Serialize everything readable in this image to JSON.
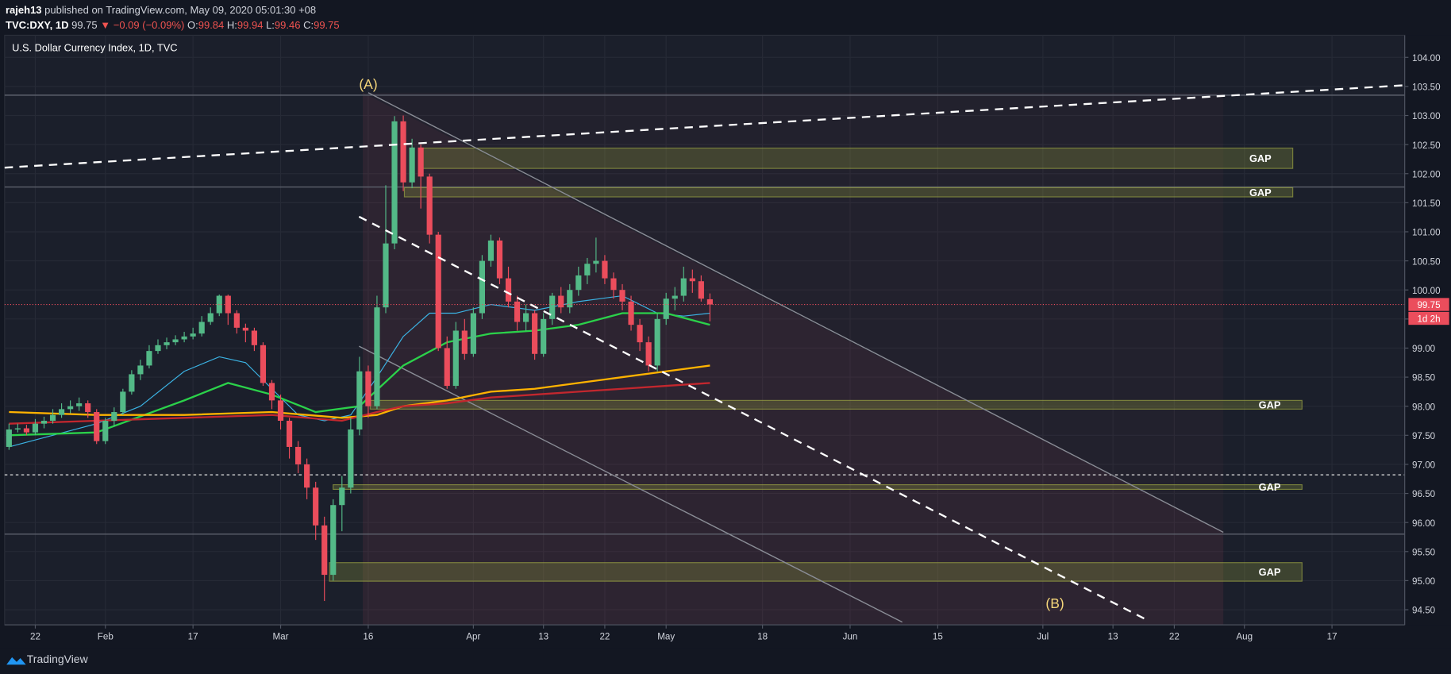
{
  "header": {
    "author": "rajeh13",
    "published": "published on TradingView.com, May 09, 2020 05:01:30 +08",
    "symbol": "TVC:DXY, 1D",
    "last": "99.75",
    "change": "▼ −0.09 (−0.09%)",
    "ohlc": [
      {
        "label": "O:",
        "value": "99.84"
      },
      {
        "label": "H:",
        "value": "99.94"
      },
      {
        "label": "L:",
        "value": "99.46"
      },
      {
        "label": "C:",
        "value": "99.75"
      }
    ]
  },
  "footer": {
    "brand": "TradingView"
  },
  "chart_data": {
    "type": "candlestick",
    "title": "U.S. Dollar Currency Index, 1D, TVC",
    "up_color": "#53b987",
    "down_color": "#eb4d5c",
    "grid": true,
    "x": [
      0,
      1,
      2,
      3,
      4,
      5,
      6,
      7,
      8,
      9,
      10,
      11,
      12,
      13,
      14,
      15,
      16,
      17,
      18,
      19,
      20,
      21,
      22,
      23,
      24,
      25,
      26,
      27,
      28,
      29,
      30,
      31,
      32,
      33,
      34,
      35,
      36,
      37,
      38,
      39,
      40,
      41,
      42,
      43,
      44,
      45,
      46,
      47,
      48,
      49,
      50,
      51,
      52,
      53,
      54,
      55,
      56,
      57,
      58,
      59,
      60,
      61,
      62,
      63,
      64,
      65,
      66,
      67,
      68,
      69,
      70,
      71,
      72,
      73,
      74,
      75,
      76,
      77,
      78,
      79,
      80
    ],
    "open": [
      97.3,
      97.6,
      97.62,
      97.55,
      97.7,
      97.75,
      97.85,
      97.95,
      98.0,
      98.05,
      97.9,
      97.4,
      97.75,
      97.9,
      98.25,
      98.55,
      98.7,
      98.95,
      99.05,
      99.1,
      99.15,
      99.2,
      99.25,
      99.45,
      99.6,
      99.9,
      99.6,
      99.35,
      99.3,
      99.05,
      98.4,
      98.1,
      97.75,
      97.3,
      97.0,
      96.6,
      95.95,
      95.1,
      96.3,
      96.6,
      97.6,
      98.6,
      98.0,
      99.7,
      100.8,
      102.9,
      101.85,
      102.45,
      101.95,
      100.95,
      99.0,
      98.35,
      99.3,
      98.9,
      99.6,
      100.5,
      100.85,
      100.2,
      99.8,
      99.45,
      99.6,
      98.9,
      99.5,
      99.9,
      99.7,
      100.0,
      100.25,
      100.45,
      100.5,
      100.2,
      100.0,
      99.8,
      99.4,
      99.1,
      98.7,
      99.5,
      99.85,
      99.9,
      100.2,
      100.15,
      99.84
    ],
    "high": [
      97.7,
      97.7,
      97.68,
      97.78,
      97.82,
      97.95,
      98.05,
      98.1,
      98.15,
      98.1,
      97.95,
      97.8,
      97.98,
      98.3,
      98.62,
      98.8,
      99.05,
      99.15,
      99.18,
      99.22,
      99.28,
      99.35,
      99.55,
      99.7,
      99.92,
      99.92,
      99.65,
      99.42,
      99.35,
      99.1,
      98.45,
      98.2,
      97.8,
      97.4,
      97.1,
      96.7,
      96.1,
      96.4,
      96.8,
      97.8,
      98.85,
      98.7,
      99.9,
      101.8,
      102.99,
      103.0,
      102.6,
      102.5,
      102.0,
      101.0,
      99.2,
      99.45,
      99.5,
      99.7,
      100.6,
      100.95,
      100.9,
      100.4,
      99.9,
      99.75,
      99.65,
      99.6,
      99.95,
      100.05,
      100.1,
      100.4,
      100.55,
      100.9,
      100.6,
      100.3,
      100.1,
      99.9,
      99.5,
      99.2,
      99.6,
      99.95,
      100.05,
      100.4,
      100.35,
      100.25,
      99.94
    ],
    "low": [
      97.25,
      97.55,
      97.5,
      97.5,
      97.62,
      97.7,
      97.8,
      97.88,
      97.92,
      97.8,
      97.35,
      97.35,
      97.65,
      97.85,
      98.2,
      98.45,
      98.65,
      98.9,
      98.98,
      99.05,
      99.1,
      99.15,
      99.2,
      99.4,
      99.55,
      99.4,
      99.25,
      99.1,
      98.95,
      98.35,
      97.95,
      97.6,
      97.1,
      96.85,
      96.4,
      95.7,
      94.65,
      95.0,
      95.85,
      96.5,
      97.5,
      97.8,
      97.95,
      99.6,
      100.7,
      101.7,
      101.75,
      101.4,
      100.8,
      98.95,
      98.3,
      98.3,
      98.8,
      98.85,
      99.5,
      100.4,
      100.1,
      99.7,
      99.3,
      99.3,
      98.8,
      98.85,
      99.4,
      99.6,
      99.6,
      99.9,
      100.1,
      100.3,
      100.1,
      99.85,
      99.65,
      99.3,
      98.95,
      98.6,
      98.6,
      99.4,
      99.65,
      99.8,
      99.95,
      99.8,
      99.46
    ],
    "close": [
      97.6,
      97.62,
      97.55,
      97.7,
      97.75,
      97.85,
      97.95,
      98.0,
      98.05,
      97.9,
      97.4,
      97.75,
      97.9,
      98.25,
      98.55,
      98.7,
      98.95,
      99.05,
      99.1,
      99.15,
      99.2,
      99.25,
      99.45,
      99.6,
      99.9,
      99.6,
      99.35,
      99.3,
      99.05,
      98.4,
      98.1,
      97.75,
      97.3,
      97.0,
      96.6,
      95.95,
      95.1,
      96.3,
      96.6,
      97.6,
      98.6,
      98.0,
      99.7,
      100.8,
      102.9,
      101.85,
      102.45,
      101.95,
      100.95,
      99.0,
      98.35,
      99.3,
      98.9,
      99.6,
      100.5,
      100.85,
      100.2,
      99.8,
      99.45,
      99.6,
      98.9,
      99.5,
      99.9,
      99.7,
      100.0,
      100.25,
      100.45,
      100.5,
      100.2,
      100.0,
      99.8,
      99.4,
      99.1,
      98.7,
      99.5,
      99.85,
      99.9,
      100.2,
      100.15,
      99.85,
      99.75
    ],
    "moving_averages": [
      {
        "color": "#3bb3e4",
        "x": [
          0,
          5,
          10,
          15,
          20,
          24,
          27,
          30,
          33,
          36,
          39,
          42,
          45,
          48,
          51,
          55,
          60,
          65,
          70,
          74,
          77,
          80
        ],
        "values": [
          97.3,
          97.5,
          97.7,
          98.0,
          98.6,
          98.85,
          98.75,
          98.3,
          97.85,
          97.75,
          97.85,
          98.5,
          99.2,
          99.6,
          99.6,
          99.75,
          99.65,
          99.8,
          99.9,
          99.6,
          99.55,
          99.6
        ]
      },
      {
        "color": "#2bd14a",
        "x": [
          0,
          10,
          20,
          25,
          30,
          35,
          40,
          45,
          50,
          55,
          60,
          65,
          70,
          75,
          80
        ],
        "values": [
          97.5,
          97.55,
          98.1,
          98.4,
          98.2,
          97.9,
          98.0,
          98.7,
          99.1,
          99.25,
          99.3,
          99.4,
          99.6,
          99.6,
          99.4
        ]
      },
      {
        "color": "#ffb300",
        "x": [
          0,
          10,
          20,
          30,
          38,
          42,
          45,
          50,
          55,
          60,
          65,
          70,
          75,
          80
        ],
        "values": [
          97.9,
          97.85,
          97.85,
          97.9,
          97.8,
          97.85,
          98.0,
          98.1,
          98.25,
          98.3,
          98.4,
          98.5,
          98.6,
          98.7
        ]
      },
      {
        "color": "#c3272e",
        "x": [
          0,
          10,
          20,
          30,
          38,
          42,
          45,
          50,
          55,
          60,
          65,
          70,
          75,
          80
        ],
        "values": [
          97.7,
          97.75,
          97.8,
          97.85,
          97.75,
          97.9,
          98.0,
          98.05,
          98.15,
          98.2,
          98.25,
          98.3,
          98.35,
          98.4
        ]
      }
    ],
    "zones": [
      {
        "label": "GAP",
        "low": 102.09,
        "high": 102.44
      },
      {
        "label": "GAP",
        "low": 101.6,
        "high": 101.76
      },
      {
        "label": "GAP",
        "low": 97.95,
        "high": 98.1
      },
      {
        "label": "GAP",
        "low": 96.57,
        "high": 96.65
      },
      {
        "label": "GAP",
        "low": 94.99,
        "high": 95.31
      }
    ],
    "levels": [
      103.35,
      101.77,
      95.8
    ],
    "dotted_level": 96.82,
    "annotations": [
      "(A)",
      "(B)"
    ],
    "countdown": "1d 2h",
    "xlim": [
      -0.5,
      159.3
    ],
    "ylim": [
      94.24,
      104.38
    ],
    "xticks": [
      {
        "value": 3,
        "label": "22"
      },
      {
        "value": 11,
        "label": "Feb"
      },
      {
        "value": 21,
        "label": "17"
      },
      {
        "value": 31,
        "label": "Mar"
      },
      {
        "value": 41,
        "label": "16"
      },
      {
        "value": 53,
        "label": "Apr"
      },
      {
        "value": 61,
        "label": "13"
      },
      {
        "value": 68,
        "label": "22"
      },
      {
        "value": 75,
        "label": "May"
      },
      {
        "value": 86,
        "label": "18"
      },
      {
        "value": 96,
        "label": "Jun"
      },
      {
        "value": 106,
        "label": "15"
      },
      {
        "value": 118,
        "label": "Jul"
      },
      {
        "value": 126,
        "label": "13"
      },
      {
        "value": 133,
        "label": "22"
      },
      {
        "value": 141,
        "label": "Aug"
      },
      {
        "value": 151,
        "label": "17"
      }
    ],
    "yticks": [
      {
        "value": 94.5,
        "label": "94.50"
      },
      {
        "value": 95,
        "label": "95.00"
      },
      {
        "value": 95.5,
        "label": "95.50"
      },
      {
        "value": 96,
        "label": "96.00"
      },
      {
        "value": 96.5,
        "label": "96.50"
      },
      {
        "value": 97,
        "label": "97.00"
      },
      {
        "value": 97.5,
        "label": "97.50"
      },
      {
        "value": 98,
        "label": "98.00"
      },
      {
        "value": 98.5,
        "label": "98.50"
      },
      {
        "value": 99,
        "label": "99.00"
      },
      {
        "value": 99.5,
        "label": "99.50"
      },
      {
        "value": 100,
        "label": "100.00"
      },
      {
        "value": 100.5,
        "label": "100.50"
      },
      {
        "value": 101,
        "label": "101.00"
      },
      {
        "value": 101.5,
        "label": "101.50"
      },
      {
        "value": 102,
        "label": "102.00"
      },
      {
        "value": 102.5,
        "label": "102.50"
      },
      {
        "value": 103,
        "label": "103.00"
      },
      {
        "value": 103.5,
        "label": "103.50"
      },
      {
        "value": 104,
        "label": "104.00"
      }
    ]
  }
}
